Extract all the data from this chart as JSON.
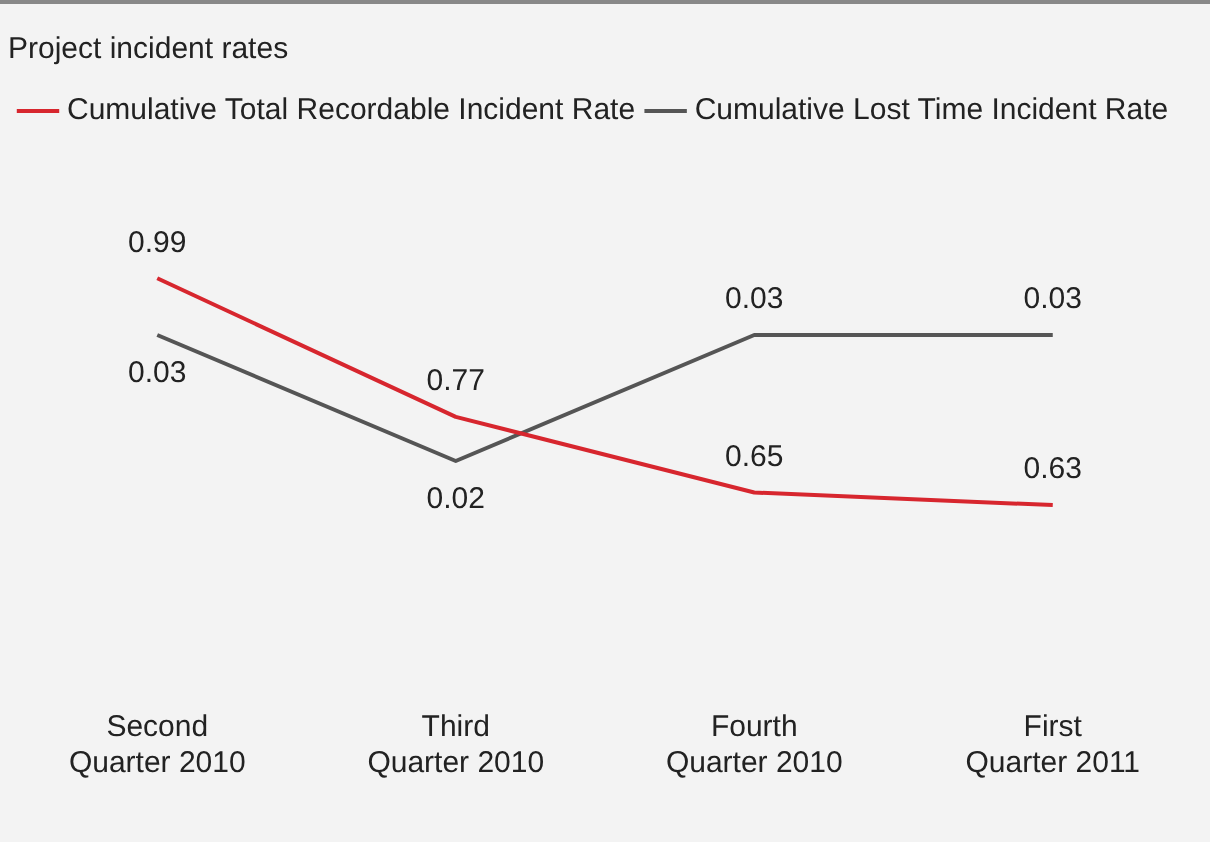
{
  "chart_data": {
    "type": "line",
    "title": "Project incident rates",
    "categories": [
      "Second Quarter 2010",
      "Third Quarter 2010",
      "Fourth Quarter 2010",
      "First Quarter 2011"
    ],
    "series": [
      {
        "name": "Cumulative Total Recordable Incident Rate",
        "color": "#d7262e",
        "values": [
          0.99,
          0.77,
          0.65,
          0.63
        ]
      },
      {
        "name": "Cumulative Lost Time Incident Rate",
        "color": "#555555",
        "values": [
          0.03,
          0.02,
          0.03,
          0.03
        ],
        "axis": "y2"
      }
    ],
    "data_labels": true,
    "legend": "top left",
    "grid": false,
    "marker": "none",
    "line_style": "solid",
    "tick_labels": "x"
  }
}
